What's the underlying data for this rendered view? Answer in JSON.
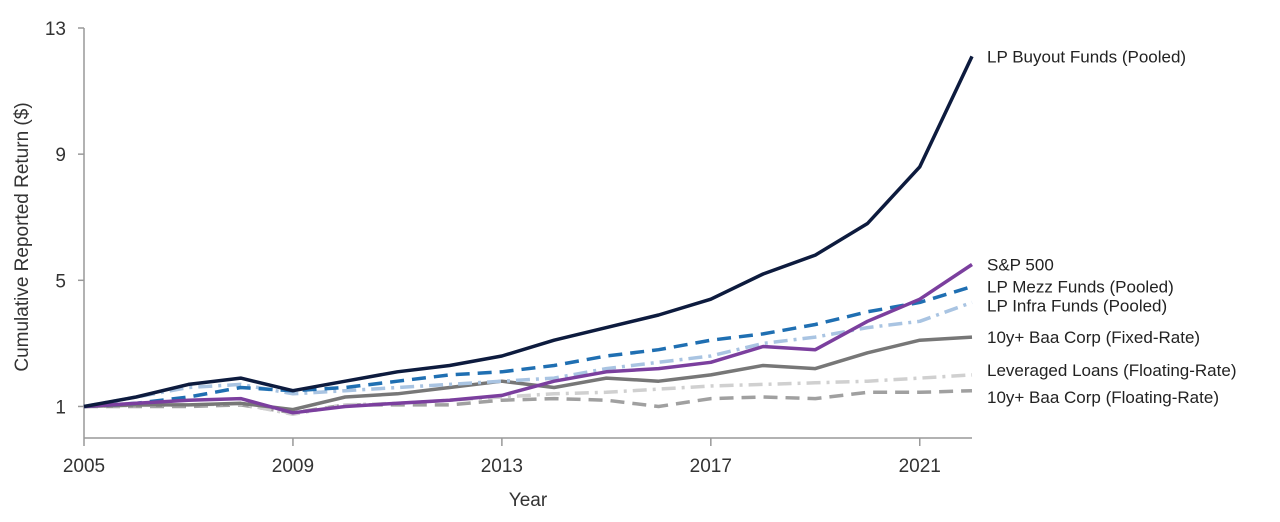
{
  "chart_data": {
    "type": "line",
    "title": "",
    "xlabel": "Year",
    "ylabel": "Cumulative Reported Return ($)",
    "xlim": [
      2005,
      2022
    ],
    "ylim": [
      0,
      13
    ],
    "x_ticks": [
      "2005",
      "2009",
      "2013",
      "2017",
      "2021"
    ],
    "y_ticks": [
      "1",
      "5",
      "9",
      "13"
    ],
    "grid": false,
    "legend": "direct-labels-right",
    "x": [
      2005,
      2006,
      2007,
      2008,
      2009,
      2010,
      2011,
      2012,
      2013,
      2014,
      2015,
      2016,
      2017,
      2018,
      2019,
      2020,
      2021,
      2022
    ],
    "series": [
      {
        "name": "LP Buyout Funds (Pooled)",
        "color": "#0d1b3e",
        "dash": "solid",
        "values": [
          1.0,
          1.3,
          1.7,
          1.9,
          1.5,
          1.8,
          2.1,
          2.3,
          2.6,
          3.1,
          3.5,
          3.9,
          4.4,
          5.2,
          5.8,
          6.8,
          8.6,
          12.1
        ]
      },
      {
        "name": "S&P 500",
        "color": "#7b3f9e",
        "dash": "solid",
        "values": [
          1.0,
          1.1,
          1.2,
          1.25,
          0.8,
          1.0,
          1.1,
          1.2,
          1.35,
          1.8,
          2.1,
          2.2,
          2.4,
          2.9,
          2.8,
          3.7,
          4.4,
          5.5
        ]
      },
      {
        "name": "LP Mezz Funds (Pooled)",
        "color": "#1f6fb2",
        "dash": "dashed",
        "values": [
          1.0,
          1.1,
          1.3,
          1.6,
          1.5,
          1.6,
          1.8,
          2.0,
          2.1,
          2.3,
          2.6,
          2.8,
          3.1,
          3.3,
          3.6,
          4.0,
          4.3,
          4.8
        ]
      },
      {
        "name": "LP Infra Funds (Pooled)",
        "color": "#a9c4e2",
        "dash": "dashdot",
        "values": [
          1.0,
          1.3,
          1.6,
          1.7,
          1.4,
          1.5,
          1.6,
          1.7,
          1.8,
          1.9,
          2.2,
          2.4,
          2.6,
          3.0,
          3.2,
          3.5,
          3.7,
          4.3
        ]
      },
      {
        "name": "10y+ Baa Corp (Fixed-Rate)",
        "color": "#777777",
        "dash": "solid",
        "values": [
          1.0,
          1.05,
          1.05,
          1.1,
          0.9,
          1.3,
          1.4,
          1.6,
          1.8,
          1.6,
          1.9,
          1.8,
          2.0,
          2.3,
          2.2,
          2.7,
          3.1,
          3.2
        ]
      },
      {
        "name": "Leveraged Loans (Floating-Rate)",
        "color": "#d0d0d0",
        "dash": "dashdot",
        "values": [
          1.0,
          1.03,
          1.05,
          1.08,
          0.75,
          1.05,
          1.1,
          1.2,
          1.3,
          1.4,
          1.45,
          1.55,
          1.65,
          1.7,
          1.75,
          1.8,
          1.9,
          2.0
        ]
      },
      {
        "name": "10y+ Baa Corp (Floating-Rate)",
        "color": "#a0a0a0",
        "dash": "dashed",
        "values": [
          1.0,
          1.0,
          1.0,
          1.05,
          0.8,
          1.05,
          1.05,
          1.05,
          1.2,
          1.25,
          1.2,
          1.0,
          1.25,
          1.3,
          1.25,
          1.45,
          1.45,
          1.5
        ]
      }
    ],
    "label_y": [
      12.1,
      5.5,
      4.8,
      4.2,
      3.2,
      2.15,
      1.3
    ]
  }
}
